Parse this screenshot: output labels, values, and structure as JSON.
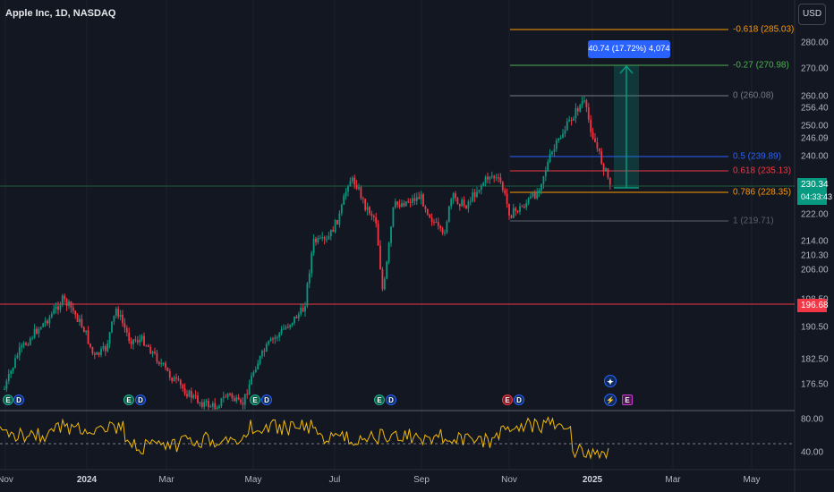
{
  "header": {
    "title": "Apple Inc, 1D, NASDAQ",
    "currency_button": "USD"
  },
  "price_axis": {
    "labels": [
      "280.00",
      "270.00",
      "260.00",
      "256.40",
      "250.00",
      "246.09",
      "240.00",
      "222.00",
      "214.00",
      "210.30",
      "206.00",
      "198.50",
      "190.50",
      "182.50",
      "176.50"
    ],
    "current_price": "230.34",
    "countdown": "04:33:43",
    "resistance_price": "196.68"
  },
  "oscillator_axis": {
    "labels": [
      "80.00",
      "40.00"
    ]
  },
  "time_axis": {
    "labels": [
      "Nov",
      "2024",
      "Mar",
      "May",
      "Jul",
      "Sep",
      "Nov",
      "2025",
      "Mar",
      "May"
    ]
  },
  "fibonacci": {
    "levels": [
      {
        "label": "-0.618 (285.03)",
        "price": 285.03,
        "color": "#ff9800"
      },
      {
        "label": "-0.27 (270.98)",
        "price": 270.98,
        "color": "#4caf50"
      },
      {
        "label": "0 (260.08)",
        "price": 260.08,
        "color": "#787b86"
      },
      {
        "label": "0.5 (239.89)",
        "price": 239.89,
        "color": "#2962ff"
      },
      {
        "label": "0.618 (235.13)",
        "price": 235.13,
        "color": "#f23645"
      },
      {
        "label": "0.786 (228.35)",
        "price": 228.35,
        "color": "#ff9800"
      },
      {
        "label": "1 (219.71)",
        "price": 219.71,
        "color": "#5d606b"
      }
    ]
  },
  "measure": {
    "label": "40.74 (17.72%) 4,074"
  },
  "events": {
    "earnings": "E",
    "dividend": "D",
    "split": "⚡"
  },
  "colors": {
    "up": "#089981",
    "down": "#f23645",
    "background": "#131722",
    "grid": "#1e222d",
    "resistance": "#f23645",
    "oscillator": "#f0b90b",
    "accent": "#2962ff",
    "current": "#089981"
  }
}
